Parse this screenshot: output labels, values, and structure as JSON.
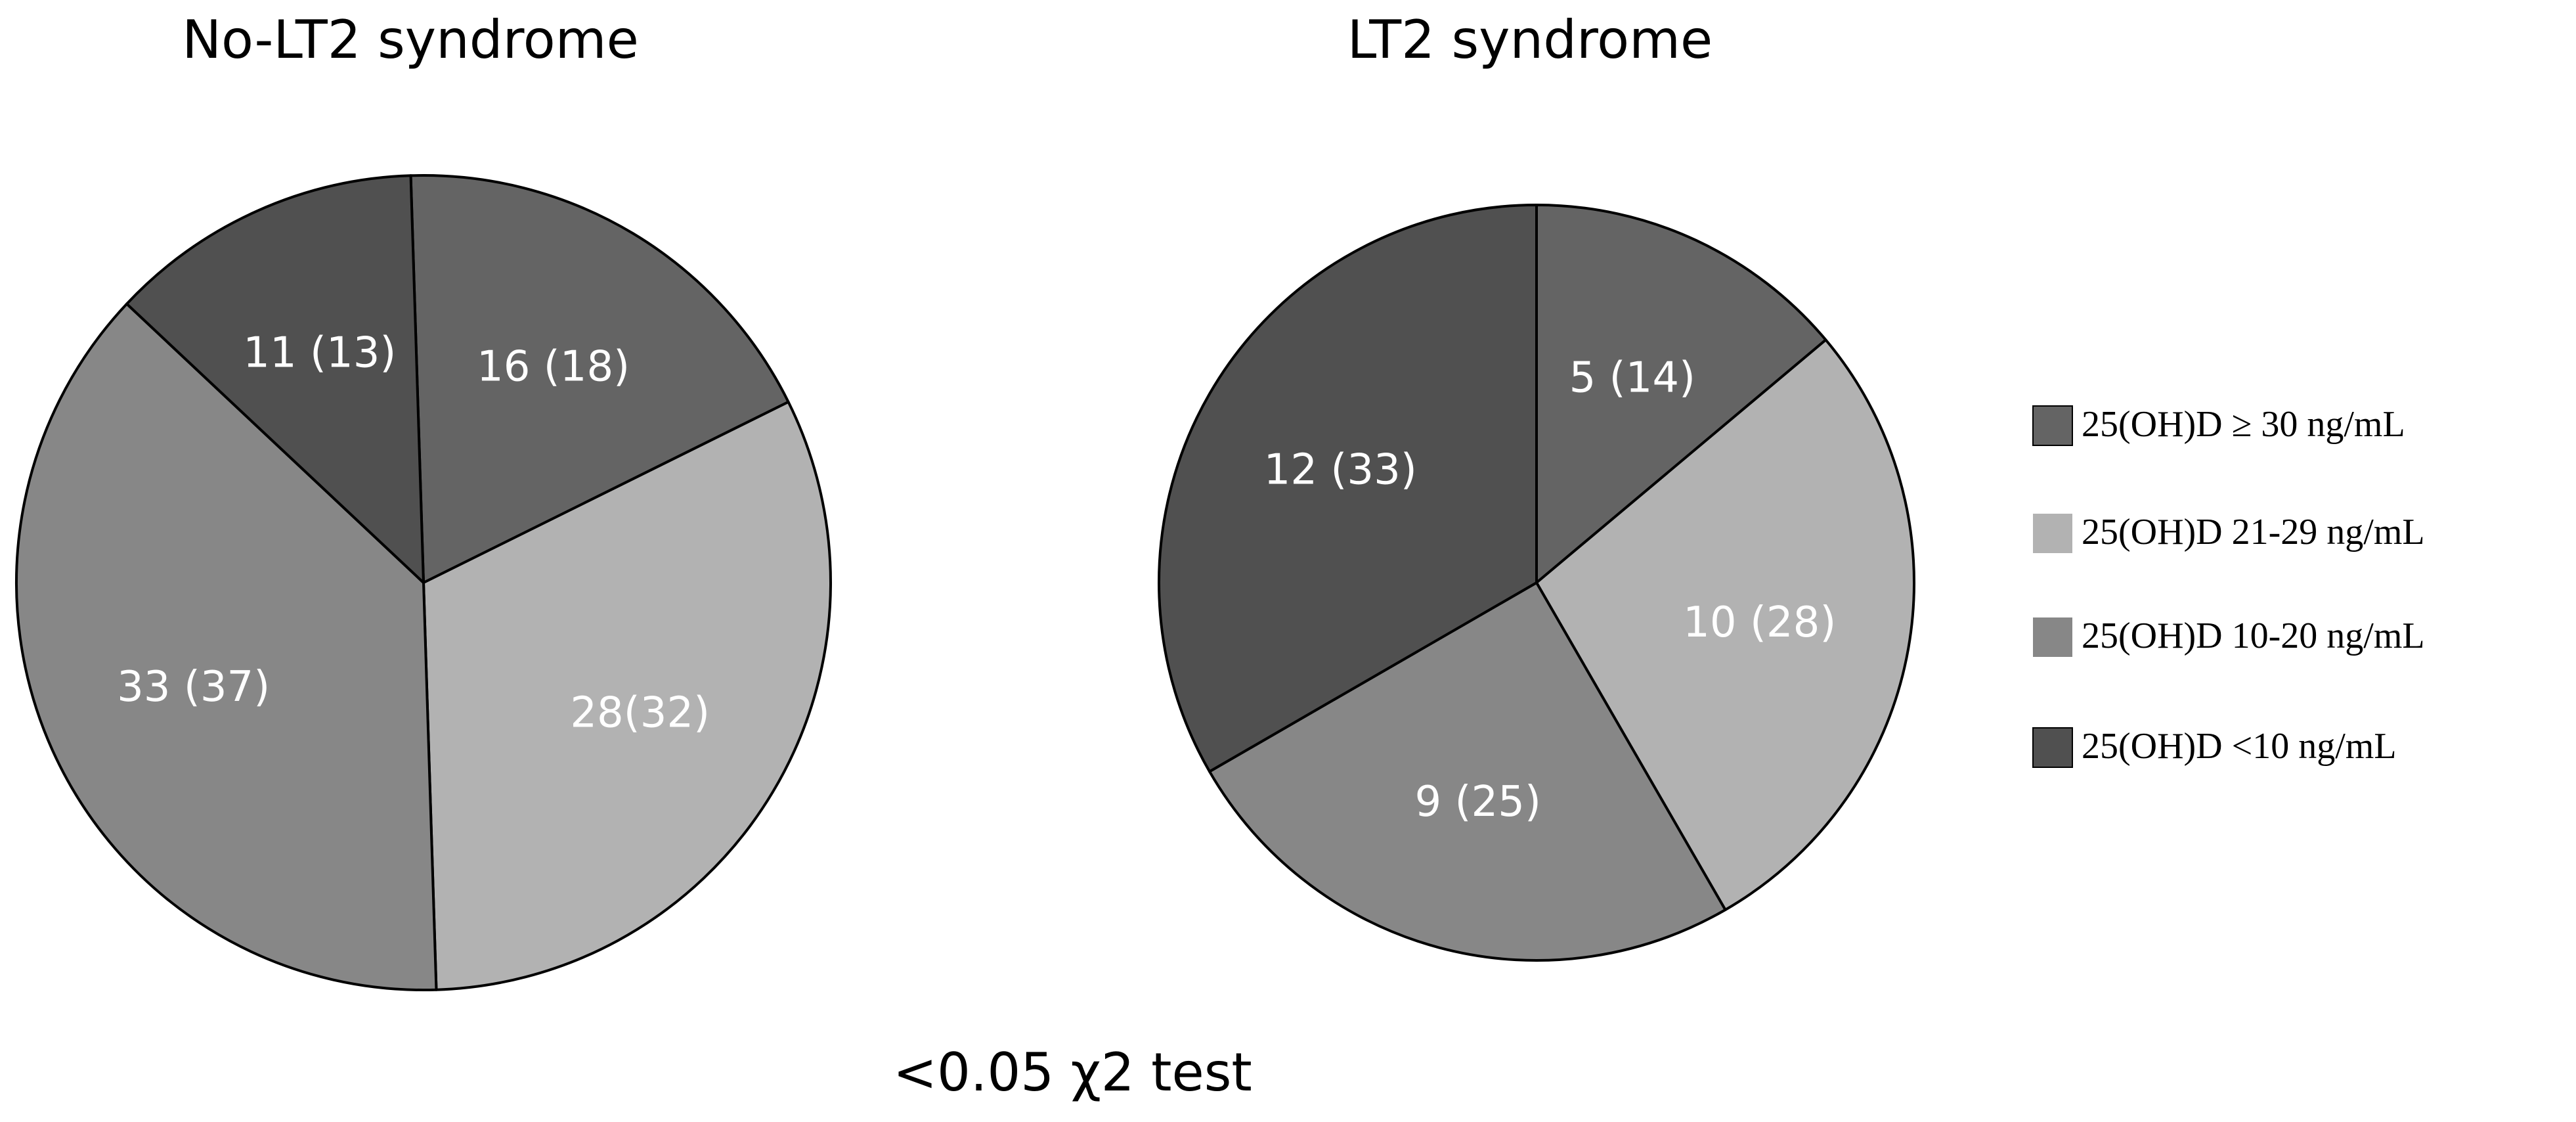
{
  "chart_data": {
    "type": "pie",
    "footnote": "<0.05 χ2 test",
    "legend": [
      {
        "label": "25(OH)D ≥ 30 ng/mL",
        "color": "#646464"
      },
      {
        "label": "25(OH)D 21-29 ng/mL",
        "color": "#b2b2b2"
      },
      {
        "label": "25(OH)D 10-20  ng/mL",
        "color": "#878787"
      },
      {
        "label": "25(OH)D <10 ng/mL",
        "color": "#505050"
      }
    ],
    "pies": [
      {
        "title": "No-LT2 syndrome",
        "slices": [
          {
            "category": "25(OH)D ≥ 30 ng/mL",
            "count": 16,
            "percent": 18,
            "label": "16 (18)"
          },
          {
            "category": "25(OH)D 21-29 ng/mL",
            "count": 28,
            "percent": 32,
            "label": "28(32)"
          },
          {
            "category": "25(OH)D 10-20  ng/mL",
            "count": 33,
            "percent": 37,
            "label": "33 (37)"
          },
          {
            "category": "25(OH)D <10 ng/mL",
            "count": 11,
            "percent": 13,
            "label": "11 (13)"
          }
        ]
      },
      {
        "title": "LT2 syndrome",
        "slices": [
          {
            "category": "25(OH)D ≥ 30 ng/mL",
            "count": 5,
            "percent": 14,
            "label": "5 (14)"
          },
          {
            "category": "25(OH)D 21-29 ng/mL",
            "count": 10,
            "percent": 28,
            "label": "10 (28)"
          },
          {
            "category": "25(OH)D 10-20  ng/mL",
            "count": 9,
            "percent": 25,
            "label": "9 (25)"
          },
          {
            "category": "25(OH)D <10 ng/mL",
            "count": 12,
            "percent": 33,
            "label": "12 (33)"
          }
        ]
      }
    ]
  }
}
